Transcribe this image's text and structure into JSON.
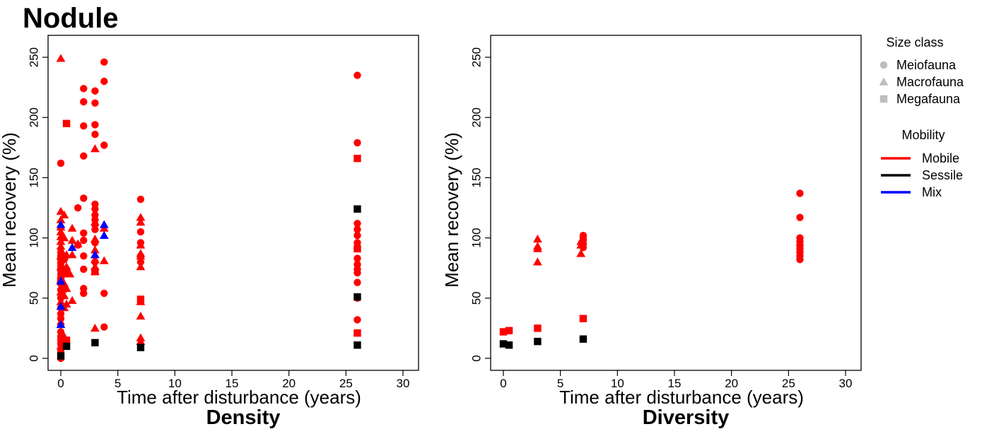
{
  "figure": {
    "title": "Nodule"
  },
  "legend": {
    "size_class_title": "Size class",
    "size_classes": [
      {
        "label": "Meiofauna",
        "shape": "circle"
      },
      {
        "label": "Macrofauna",
        "shape": "triangle"
      },
      {
        "label": "Megafauna",
        "shape": "square"
      }
    ],
    "mobility_title": "Mobility",
    "mobility": [
      {
        "label": "Mobile",
        "color": "#ff0000"
      },
      {
        "label": "Sessile",
        "color": "#000000"
      },
      {
        "label": "Mix",
        "color": "#0000ff"
      }
    ],
    "placement": "right"
  },
  "colors": {
    "Mobile": "#ff0000",
    "Sessile": "#000000",
    "Mix": "#0000ff",
    "legend_shape": "#bdbdbd"
  },
  "chart_data": [
    {
      "type": "scatter",
      "panel_label": "Density",
      "xlabel": "Time after disturbance (years)",
      "ylabel": "Mean recovery (%)",
      "xlim": [
        0,
        30
      ],
      "ylim": [
        0,
        260
      ],
      "xticks": [
        0,
        5,
        10,
        15,
        20,
        25,
        30
      ],
      "yticks": [
        0,
        50,
        100,
        150,
        200,
        250
      ],
      "grid": false,
      "series": [
        {
          "name": "Mobile",
          "shape": "circle",
          "points": [
            [
              0,
              0
            ],
            [
              0,
              3
            ],
            [
              0,
              5
            ],
            [
              0,
              8
            ],
            [
              0,
              12
            ],
            [
              0,
              15
            ],
            [
              0,
              18
            ],
            [
              0,
              22
            ],
            [
              0,
              28
            ],
            [
              0,
              33
            ],
            [
              0,
              37
            ],
            [
              0,
              42
            ],
            [
              0,
              50
            ],
            [
              0,
              57
            ],
            [
              0,
              62
            ],
            [
              0,
              66
            ],
            [
              0,
              70
            ],
            [
              0,
              73
            ],
            [
              0,
              76
            ],
            [
              0,
              79
            ],
            [
              0,
              82
            ],
            [
              0,
              85
            ],
            [
              0,
              88
            ],
            [
              0,
              162
            ],
            [
              0.2,
              72
            ],
            [
              0.3,
              57
            ],
            [
              0.3,
              82
            ],
            [
              0.5,
              10
            ],
            [
              0.5,
              74
            ],
            [
              1.5,
              94
            ],
            [
              1.5,
              125
            ],
            [
              2,
              54
            ],
            [
              2,
              58
            ],
            [
              2,
              74
            ],
            [
              2,
              85
            ],
            [
              2,
              98
            ],
            [
              2,
              104
            ],
            [
              2,
              133
            ],
            [
              2,
              168
            ],
            [
              2,
              193
            ],
            [
              2,
              213
            ],
            [
              2,
              224
            ],
            [
              3,
              72
            ],
            [
              3,
              80
            ],
            [
              3,
              96
            ],
            [
              3,
              107
            ],
            [
              3,
              111
            ],
            [
              3,
              115
            ],
            [
              3,
              119
            ],
            [
              3,
              124
            ],
            [
              3,
              128
            ],
            [
              3,
              186
            ],
            [
              3,
              194
            ],
            [
              3,
              212
            ],
            [
              3,
              222
            ],
            [
              3.8,
              26
            ],
            [
              3.8,
              54
            ],
            [
              3.8,
              177
            ],
            [
              3.8,
              230
            ],
            [
              3.8,
              246
            ],
            [
              7,
              80
            ],
            [
              7,
              85
            ],
            [
              7,
              96
            ],
            [
              7,
              105
            ],
            [
              7,
              132
            ],
            [
              26,
              32
            ],
            [
              26,
              50
            ],
            [
              26,
              63
            ],
            [
              26,
              71
            ],
            [
              26,
              74
            ],
            [
              26,
              78
            ],
            [
              26,
              83
            ],
            [
              26,
              96
            ],
            [
              26,
              102
            ],
            [
              26,
              107
            ],
            [
              26,
              112
            ],
            [
              26,
              179
            ],
            [
              26,
              235
            ]
          ]
        },
        {
          "name": "Mobile",
          "shape": "triangle",
          "points": [
            [
              0,
              10
            ],
            [
              0,
              47
            ],
            [
              0,
              55
            ],
            [
              0,
              65
            ],
            [
              0,
              76
            ],
            [
              0,
              85
            ],
            [
              0,
              93
            ],
            [
              0,
              97
            ],
            [
              0,
              101
            ],
            [
              0,
              105
            ],
            [
              0,
              109
            ],
            [
              0,
              115
            ],
            [
              0,
              122
            ],
            [
              0,
              249
            ],
            [
              0.3,
              18
            ],
            [
              0.3,
              42
            ],
            [
              0.3,
              52
            ],
            [
              0.3,
              62
            ],
            [
              0.3,
              72
            ],
            [
              0.3,
              85
            ],
            [
              0.3,
              100
            ],
            [
              0.3,
              119
            ],
            [
              0.5,
              45
            ],
            [
              0.5,
              58
            ],
            [
              0.5,
              70
            ],
            [
              0.5,
              76
            ],
            [
              0.5,
              86
            ],
            [
              0.8,
              70
            ],
            [
              1,
              48
            ],
            [
              1,
              86
            ],
            [
              1,
              98
            ],
            [
              1,
              108
            ],
            [
              1.5,
              95
            ],
            [
              3,
              25
            ],
            [
              3,
              72
            ],
            [
              3,
              76
            ],
            [
              3,
              82
            ],
            [
              3,
              86
            ],
            [
              3,
              90
            ],
            [
              3,
              99
            ],
            [
              3,
              113
            ],
            [
              3,
              174
            ],
            [
              3.8,
              81
            ],
            [
              3.8,
              108
            ],
            [
              7,
              14
            ],
            [
              7,
              17
            ],
            [
              7,
              35
            ],
            [
              7,
              47
            ],
            [
              7,
              76
            ],
            [
              7,
              85
            ],
            [
              7,
              87
            ],
            [
              7,
              94
            ],
            [
              7,
              113
            ],
            [
              7,
              117
            ]
          ]
        },
        {
          "name": "Mobile",
          "shape": "square",
          "points": [
            [
              0,
              65
            ],
            [
              0.3,
              14
            ],
            [
              0.5,
              15
            ],
            [
              0.5,
              195
            ],
            [
              3,
              72
            ],
            [
              7,
              49
            ],
            [
              26,
              21
            ],
            [
              26,
              91
            ],
            [
              26,
              166
            ]
          ]
        },
        {
          "name": "Sessile",
          "shape": "square",
          "points": [
            [
              0,
              2
            ],
            [
              0.5,
              10
            ],
            [
              3,
              13
            ],
            [
              7,
              9
            ],
            [
              26,
              11
            ],
            [
              26,
              51
            ],
            [
              26,
              124
            ]
          ]
        },
        {
          "name": "Mix",
          "shape": "triangle",
          "points": [
            [
              0,
              28
            ],
            [
              0,
              43
            ],
            [
              0,
              64
            ],
            [
              0,
              111
            ],
            [
              1,
              92
            ],
            [
              3,
              86
            ],
            [
              3.8,
              102
            ],
            [
              3.8,
              111
            ]
          ]
        }
      ]
    },
    {
      "type": "scatter",
      "panel_label": "Diversity",
      "xlabel": "Time after disturbance (years)",
      "ylabel": "Mean recovery (%)",
      "xlim": [
        0,
        30
      ],
      "ylim": [
        0,
        260
      ],
      "xticks": [
        0,
        5,
        10,
        15,
        20,
        25,
        30
      ],
      "yticks": [
        0,
        50,
        100,
        150,
        200,
        250
      ],
      "grid": false,
      "series": [
        {
          "name": "Mobile",
          "shape": "circle",
          "points": [
            [
              7,
              92
            ],
            [
              7,
              95
            ],
            [
              7,
              98
            ],
            [
              7,
              100
            ],
            [
              7,
              102
            ],
            [
              26,
              82
            ],
            [
              26,
              85
            ],
            [
              26,
              88
            ],
            [
              26,
              91
            ],
            [
              26,
              94
            ],
            [
              26,
              97
            ],
            [
              26,
              100
            ],
            [
              26,
              117
            ],
            [
              26,
              137
            ]
          ]
        },
        {
          "name": "Mobile",
          "shape": "triangle",
          "points": [
            [
              3,
              80
            ],
            [
              3,
              91
            ],
            [
              3,
              93
            ],
            [
              3,
              99
            ],
            [
              6.8,
              87
            ],
            [
              6.8,
              94
            ],
            [
              6.8,
              97
            ]
          ]
        },
        {
          "name": "Mobile",
          "shape": "square",
          "points": [
            [
              0,
              22
            ],
            [
              0.5,
              23
            ],
            [
              3,
              25
            ],
            [
              7,
              33
            ]
          ]
        },
        {
          "name": "Sessile",
          "shape": "square",
          "points": [
            [
              0,
              12
            ],
            [
              0.5,
              11
            ],
            [
              3,
              14
            ],
            [
              7,
              16
            ]
          ]
        }
      ]
    }
  ]
}
